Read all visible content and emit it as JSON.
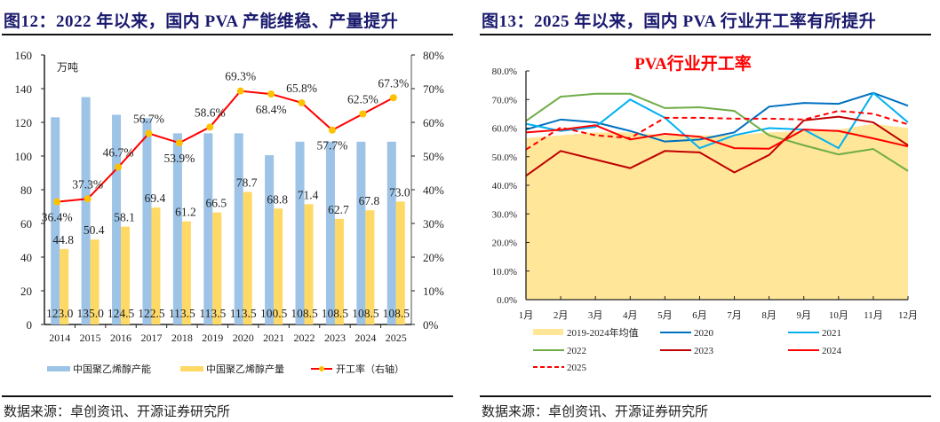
{
  "left": {
    "title": "图12：2022 年以来，国内 PVA 产能维稳、产量提升",
    "source": "数据来源：卓创资讯、开源证券研究所"
  },
  "right": {
    "title": "图13：2025 年以来，国内 PVA 行业开工率有所提升",
    "source": "数据来源：卓创资讯、开源证券研究所"
  },
  "chart_data": [
    {
      "type": "bar",
      "title": "",
      "unit_label": "万吨",
      "categories": [
        "2014",
        "2015",
        "2016",
        "2017",
        "2018",
        "2019",
        "2020",
        "2021",
        "2022",
        "2023",
        "2024",
        "2025"
      ],
      "ylim": [
        0,
        160
      ],
      "yticks": [
        0,
        20,
        40,
        60,
        80,
        100,
        120,
        140,
        160
      ],
      "y2lim": [
        0,
        80
      ],
      "y2ticks": [
        "0%",
        "10%",
        "20%",
        "30%",
        "40%",
        "50%",
        "60%",
        "70%",
        "80%"
      ],
      "series": [
        {
          "name": "中国聚乙烯醇产能",
          "kind": "bar",
          "axis": "left",
          "color": "#9dc3e6",
          "values": [
            123.0,
            135.0,
            124.5,
            122.5,
            113.5,
            113.5,
            113.5,
            100.5,
            108.5,
            108.5,
            108.5,
            108.5
          ],
          "labels": [
            "123.0",
            "135.0",
            "124.5",
            "122.5",
            "113.5",
            "113.5",
            "113.5",
            "100.5",
            "108.5",
            "108.5",
            "108.5",
            "108.5"
          ]
        },
        {
          "name": "中国聚乙烯醇产量",
          "kind": "bar",
          "axis": "left",
          "color": "#ffd966",
          "values": [
            44.8,
            50.4,
            58.1,
            69.4,
            61.2,
            66.5,
            78.7,
            68.8,
            71.4,
            62.7,
            67.8,
            73.0
          ],
          "labels": [
            "44.8",
            "50.4",
            "58.1",
            "69.4",
            "61.2",
            "66.5",
            "78.7",
            "68.8",
            "71.4",
            "62.7",
            "67.8",
            "73.0"
          ]
        },
        {
          "name": "开工率（右轴）",
          "kind": "line",
          "axis": "right",
          "color": "#ff0000",
          "marker_color": "#ffc000",
          "values": [
            36.4,
            37.3,
            46.7,
            56.7,
            53.9,
            58.6,
            69.3,
            68.4,
            65.8,
            57.7,
            62.5,
            67.3
          ],
          "labels": [
            "36.4%",
            "37.3%",
            "46.7%",
            "56.7%",
            "53.9%",
            "58.6%",
            "69.3%",
            "68.4%",
            "65.8%",
            "57.7%",
            "62.5%",
            "67.3%"
          ]
        }
      ],
      "legend": "bottom",
      "grid": false
    },
    {
      "type": "line",
      "title": "PVA行业开工率",
      "title_color": "#ff0000",
      "categories": [
        "1月",
        "2月",
        "3月",
        "4月",
        "5月",
        "6月",
        "7月",
        "8月",
        "9月",
        "10月",
        "11月",
        "12月"
      ],
      "ylim": [
        0,
        80
      ],
      "yticks": [
        "0.0%",
        "10.0%",
        "20.0%",
        "30.0%",
        "40.0%",
        "50.0%",
        "60.0%",
        "70.0%",
        "80.0%"
      ],
      "series": [
        {
          "name": "2019-2024年均值",
          "kind": "area",
          "color": "#ffe699",
          "values": [
            56.5,
            57.5,
            58.5,
            58.5,
            57.5,
            57.5,
            57.5,
            58.5,
            59.0,
            59.5,
            61.5,
            60.0
          ]
        },
        {
          "name": "2020",
          "kind": "line",
          "color": "#0070c0",
          "values": [
            59.5,
            63.0,
            62.0,
            59.0,
            55.3,
            56.0,
            58.5,
            67.5,
            68.8,
            68.5,
            72.3,
            67.8
          ]
        },
        {
          "name": "2021",
          "kind": "line",
          "color": "#00b0f0",
          "values": [
            61.5,
            59.0,
            60.4,
            70.0,
            63.6,
            53.0,
            57.5,
            60.0,
            59.5,
            53.0,
            72.3,
            62.0
          ]
        },
        {
          "name": "2022",
          "kind": "line",
          "color": "#70ad47",
          "values": [
            62.5,
            71.0,
            72.0,
            72.0,
            67.0,
            67.3,
            66.0,
            57.5,
            54.0,
            50.8,
            52.7,
            45.0
          ]
        },
        {
          "name": "2023",
          "kind": "line",
          "color": "#c00000",
          "values": [
            43.3,
            52.0,
            49.0,
            46.0,
            52.0,
            51.5,
            44.5,
            50.6,
            62.7,
            64.0,
            62.0,
            54.0
          ]
        },
        {
          "name": "2024",
          "kind": "line",
          "color": "#ff0000",
          "values": [
            58.5,
            59.4,
            61.0,
            56.0,
            58.0,
            57.0,
            53.0,
            52.8,
            59.5,
            59.0,
            56.4,
            53.6
          ]
        },
        {
          "name": "2025",
          "kind": "dashed",
          "color": "#ff0000",
          "values": [
            52.5,
            60.2,
            57.5,
            56.5,
            63.6,
            63.6,
            63.3,
            63.3,
            63.0,
            66.0,
            65.0,
            61.3
          ]
        }
      ],
      "legend": "bottom",
      "grid": false
    }
  ]
}
